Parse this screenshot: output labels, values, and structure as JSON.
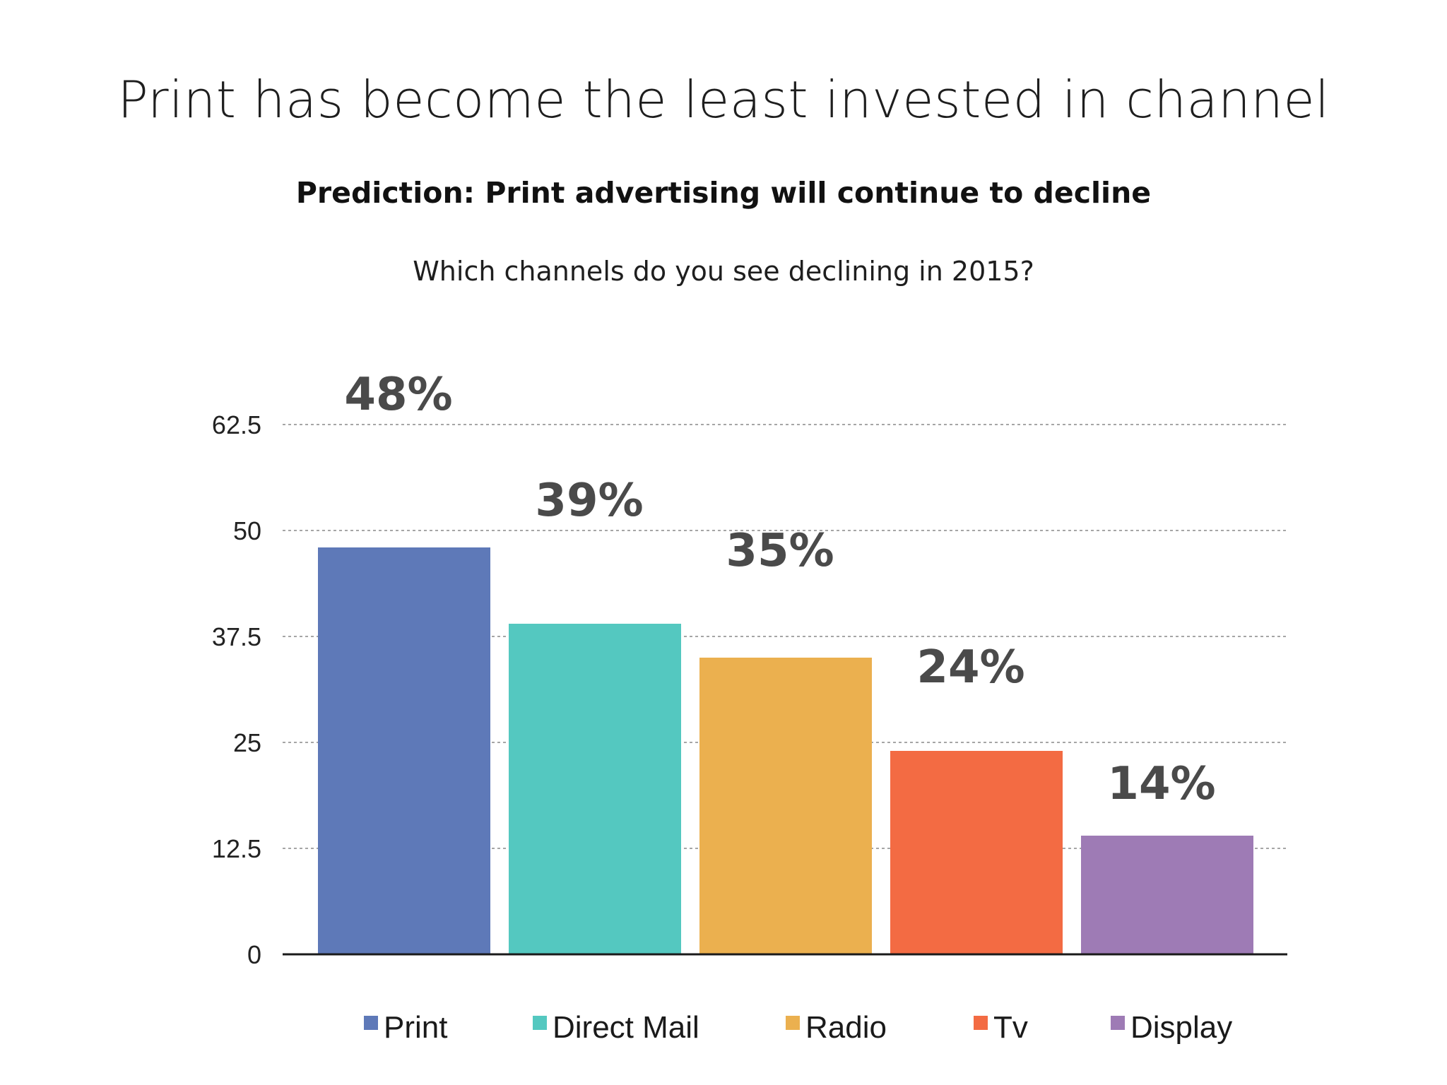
{
  "header": {
    "title": "Print has become the least invested in channel",
    "subtitle": "Prediction: Print advertising will continue to decline",
    "question": "Which channels do you see declining in 2015?"
  },
  "chart_data": {
    "type": "bar",
    "title": "Which channels do you see declining in 2015?",
    "categories": [
      "Print",
      "Direct Mail",
      "Radio",
      "Tv",
      "Display"
    ],
    "values": [
      48,
      39,
      35,
      24,
      14
    ],
    "value_labels": [
      "48%",
      "39%",
      "35%",
      "24%",
      "14%"
    ],
    "colors": [
      "#5e79b8",
      "#54c8c0",
      "#ebb04f",
      "#f36b43",
      "#9e7bb5"
    ],
    "yticks": [
      0,
      12.5,
      25,
      37.5,
      50,
      62.5
    ],
    "ytick_labels": [
      "0",
      "12.5",
      "25",
      "37.5",
      "50",
      "62.5"
    ],
    "ylim": [
      0,
      62.5
    ],
    "xlabel": "",
    "ylabel": "",
    "grid": true,
    "legend": "bottom"
  }
}
